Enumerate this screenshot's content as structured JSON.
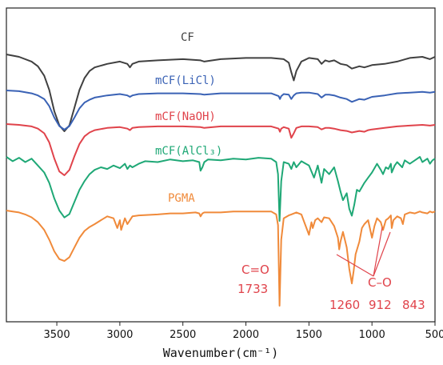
{
  "chart_data": {
    "type": "line",
    "xlabel": "Wavenumber(cm⁻¹)",
    "ylabel": "",
    "xlim": [
      3900,
      500
    ],
    "x_reversed": true,
    "x_ticks": [
      3500,
      3000,
      2500,
      2000,
      1500,
      1000,
      500
    ],
    "y_tick_labels_shown": false,
    "grid": false,
    "legend": "inline labels above each curve",
    "series": [
      {
        "name": "CF",
        "color": "#404040",
        "offset": 0,
        "x": [
          3900,
          3800,
          3700,
          3650,
          3600,
          3560,
          3520,
          3480,
          3440,
          3400,
          3360,
          3320,
          3280,
          3240,
          3200,
          3100,
          3000,
          2940,
          2920,
          2900,
          2850,
          2700,
          2500,
          2360,
          2330,
          2200,
          2000,
          1800,
          1700,
          1660,
          1640,
          1620,
          1600,
          1560,
          1500,
          1430,
          1400,
          1370,
          1340,
          1300,
          1250,
          1200,
          1160,
          1100,
          1060,
          1030,
          1000,
          900,
          800,
          700,
          600,
          540,
          500
        ],
        "y": [
          100,
          98,
          94,
          90,
          82,
          70,
          52,
          40,
          35,
          40,
          55,
          70,
          80,
          86,
          89,
          92,
          94,
          92,
          89,
          92,
          94,
          95,
          96,
          95,
          94,
          96,
          97,
          97,
          96,
          93,
          85,
          78,
          86,
          94,
          97,
          96,
          92,
          95,
          94,
          95,
          92,
          91,
          88,
          90,
          89,
          90,
          91,
          92,
          94,
          97,
          98,
          96,
          98
        ]
      },
      {
        "name": "mCF(LiCl)",
        "color": "#3a62b5",
        "offset": 0,
        "x": [
          3900,
          3800,
          3700,
          3650,
          3600,
          3560,
          3520,
          3480,
          3440,
          3400,
          3360,
          3320,
          3280,
          3240,
          3200,
          3100,
          3000,
          2940,
          2920,
          2900,
          2850,
          2700,
          2500,
          2360,
          2330,
          2200,
          2000,
          1800,
          1740,
          1730,
          1720,
          1700,
          1660,
          1640,
          1620,
          1600,
          1560,
          1500,
          1430,
          1400,
          1370,
          1340,
          1300,
          1250,
          1200,
          1160,
          1100,
          1060,
          1030,
          1000,
          900,
          800,
          700,
          600,
          540,
          500
        ],
        "y": [
          100,
          99,
          96,
          93,
          88,
          78,
          62,
          50,
          45,
          50,
          62,
          75,
          83,
          87,
          90,
          93,
          95,
          93,
          91,
          93,
          95,
          96,
          96,
          95,
          94,
          96,
          96,
          96,
          92,
          88,
          92,
          95,
          94,
          88,
          93,
          96,
          97,
          97,
          95,
          90,
          94,
          94,
          93,
          90,
          88,
          84,
          88,
          87,
          89,
          91,
          93,
          96,
          97,
          98,
          97,
          98
        ]
      },
      {
        "name": "mCF(NaOH)",
        "color": "#e0434b",
        "offset": 0,
        "x": [
          3900,
          3800,
          3700,
          3650,
          3600,
          3560,
          3520,
          3480,
          3440,
          3400,
          3360,
          3320,
          3280,
          3240,
          3200,
          3100,
          3000,
          2940,
          2920,
          2900,
          2850,
          2700,
          2500,
          2360,
          2330,
          2200,
          2000,
          1800,
          1740,
          1730,
          1720,
          1700,
          1660,
          1640,
          1620,
          1600,
          1560,
          1500,
          1430,
          1400,
          1370,
          1340,
          1300,
          1250,
          1200,
          1160,
          1100,
          1060,
          1030,
          1000,
          900,
          800,
          700,
          600,
          540,
          500
        ],
        "y": [
          100,
          99,
          97,
          94,
          88,
          76,
          55,
          38,
          33,
          40,
          58,
          74,
          84,
          89,
          92,
          95,
          96,
          94,
          92,
          95,
          96,
          97,
          97,
          96,
          95,
          97,
          97,
          97,
          94,
          90,
          94,
          96,
          94,
          82,
          88,
          95,
          97,
          97,
          96,
          93,
          95,
          95,
          94,
          92,
          91,
          89,
          91,
          90,
          92,
          93,
          95,
          97,
          98,
          99,
          98,
          99
        ]
      },
      {
        "name": "mCF(AlCl₃)",
        "color": "#1fa876",
        "offset": 0,
        "x": [
          3900,
          3850,
          3800,
          3750,
          3700,
          3650,
          3600,
          3560,
          3520,
          3480,
          3440,
          3400,
          3360,
          3320,
          3280,
          3240,
          3200,
          3150,
          3100,
          3050,
          3000,
          2960,
          2940,
          2920,
          2900,
          2850,
          2800,
          2700,
          2600,
          2500,
          2420,
          2370,
          2360,
          2345,
          2330,
          2300,
          2200,
          2100,
          2000,
          1900,
          1800,
          1760,
          1745,
          1733,
          1720,
          1700,
          1660,
          1640,
          1620,
          1600,
          1560,
          1500,
          1460,
          1430,
          1400,
          1380,
          1340,
          1300,
          1270,
          1250,
          1230,
          1200,
          1180,
          1160,
          1140,
          1120,
          1100,
          1060,
          1030,
          1000,
          960,
          930,
          912,
          890,
          870,
          850,
          843,
          820,
          800,
          760,
          740,
          700,
          660,
          620,
          600,
          560,
          540,
          520,
          500
        ],
        "y": [
          100,
          95,
          99,
          94,
          98,
          90,
          82,
          70,
          52,
          38,
          30,
          34,
          48,
          62,
          72,
          80,
          85,
          88,
          86,
          90,
          87,
          92,
          86,
          90,
          88,
          92,
          95,
          94,
          97,
          95,
          96,
          94,
          84,
          88,
          94,
          97,
          96,
          98,
          97,
          99,
          98,
          94,
          80,
          26,
          72,
          94,
          92,
          86,
          94,
          88,
          95,
          90,
          76,
          90,
          70,
          86,
          80,
          88,
          72,
          60,
          50,
          58,
          40,
          32,
          45,
          62,
          60,
          70,
          76,
          82,
          92,
          85,
          80,
          88,
          86,
          92,
          82,
          90,
          94,
          88,
          96,
          92,
          96,
          100,
          94,
          98,
          92,
          96,
          98
        ]
      },
      {
        "name": "PGMA",
        "color": "#f08a3a",
        "offset": 0,
        "x": [
          3900,
          3850,
          3800,
          3750,
          3700,
          3650,
          3600,
          3560,
          3520,
          3480,
          3440,
          3400,
          3360,
          3320,
          3280,
          3240,
          3200,
          3150,
          3100,
          3050,
          3020,
          3000,
          2990,
          2960,
          2940,
          2920,
          2900,
          2850,
          2700,
          2600,
          2500,
          2400,
          2370,
          2360,
          2345,
          2330,
          2300,
          2200,
          2100,
          2000,
          1900,
          1800,
          1760,
          1745,
          1733,
          1720,
          1700,
          1660,
          1640,
          1600,
          1560,
          1500,
          1480,
          1470,
          1450,
          1430,
          1400,
          1380,
          1340,
          1300,
          1270,
          1260,
          1250,
          1230,
          1200,
          1180,
          1160,
          1145,
          1130,
          1100,
          1080,
          1060,
          1030,
          1000,
          980,
          960,
          930,
          912,
          890,
          870,
          850,
          843,
          830,
          800,
          770,
          755,
          740,
          700,
          660,
          620,
          600,
          560,
          540,
          520,
          500
        ],
        "y": [
          100,
          99,
          98,
          96,
          93,
          88,
          80,
          70,
          58,
          50,
          48,
          52,
          62,
          72,
          79,
          83,
          86,
          90,
          94,
          92,
          82,
          90,
          80,
          92,
          86,
          90,
          94,
          95,
          96,
          97,
          97,
          98,
          97,
          94,
          97,
          98,
          98,
          98,
          99,
          99,
          99,
          99,
          96,
          85,
          2,
          70,
          92,
          95,
          96,
          98,
          96,
          75,
          88,
          82,
          90,
          92,
          88,
          93,
          92,
          84,
          72,
          60,
          68,
          78,
          62,
          40,
          25,
          38,
          55,
          68,
          82,
          86,
          90,
          72,
          84,
          92,
          88,
          80,
          90,
          92,
          95,
          82,
          90,
          94,
          92,
          86,
          96,
          98,
          97,
          99,
          98,
          97,
          99,
          98,
          99
        ]
      }
    ],
    "annotations": [
      {
        "text": "C=O",
        "x": 1733
      },
      {
        "text": "1733",
        "x": 1733
      },
      {
        "text": "C–O",
        "x": 912
      },
      {
        "text": "1260",
        "x": 1260
      },
      {
        "text": "912",
        "x": 912
      },
      {
        "text": "843",
        "x": 843
      }
    ],
    "connector_color": "#e0434b"
  }
}
